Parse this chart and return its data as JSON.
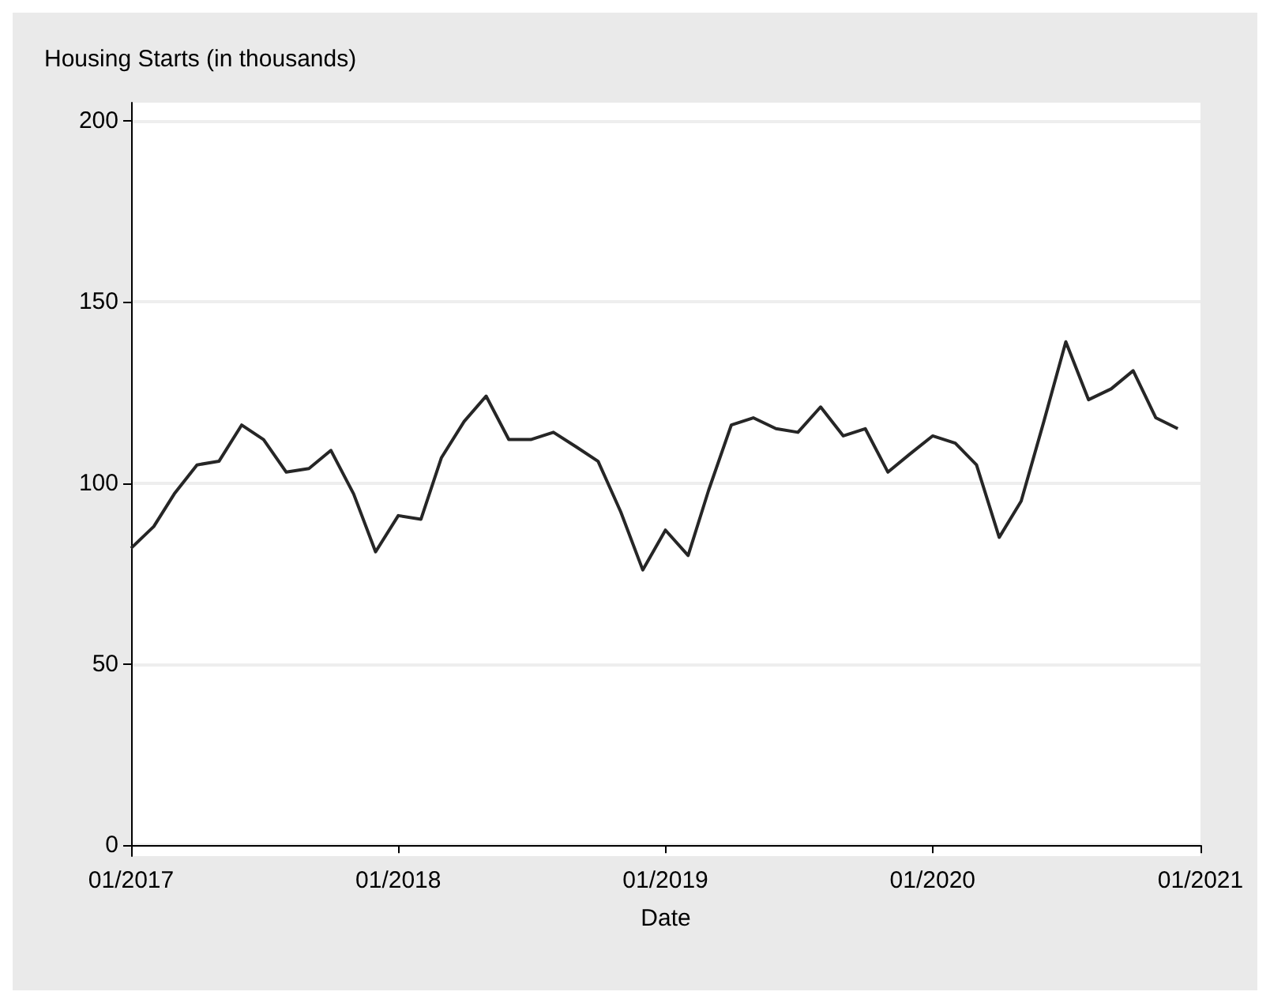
{
  "chart_data": {
    "type": "line",
    "ylabel": "Housing Starts (in thousands)",
    "xlabel": "Date",
    "x": [
      "2017-01",
      "2017-02",
      "2017-03",
      "2017-04",
      "2017-05",
      "2017-06",
      "2017-07",
      "2017-08",
      "2017-09",
      "2017-10",
      "2017-11",
      "2017-12",
      "2018-01",
      "2018-02",
      "2018-03",
      "2018-04",
      "2018-05",
      "2018-06",
      "2018-07",
      "2018-08",
      "2018-09",
      "2018-10",
      "2018-11",
      "2018-12",
      "2019-01",
      "2019-02",
      "2019-03",
      "2019-04",
      "2019-05",
      "2019-06",
      "2019-07",
      "2019-08",
      "2019-09",
      "2019-10",
      "2019-11",
      "2019-12",
      "2020-01",
      "2020-02",
      "2020-03",
      "2020-04",
      "2020-05",
      "2020-06",
      "2020-07",
      "2020-08",
      "2020-09",
      "2020-10",
      "2020-11",
      "2020-12"
    ],
    "series": [
      {
        "color": "#262626",
        "values": [
          82,
          88,
          97,
          105,
          106,
          116,
          112,
          103,
          104,
          109,
          97,
          81,
          91,
          90,
          107,
          117,
          124,
          112,
          112,
          114,
          110,
          106,
          92,
          76,
          87,
          80,
          98,
          116,
          118,
          115,
          114,
          121,
          113,
          115,
          103,
          108,
          113,
          111,
          105,
          85,
          95,
          117,
          139,
          123,
          126,
          131,
          118,
          115
        ]
      }
    ],
    "xlim": [
      "2017-01",
      "2021-01"
    ],
    "xticks": [
      {
        "value": "2017-01",
        "label": "01/2017"
      },
      {
        "value": "2018-01",
        "label": "01/2018"
      },
      {
        "value": "2019-01",
        "label": "01/2019"
      },
      {
        "value": "2020-01",
        "label": "01/2020"
      },
      {
        "value": "2021-01",
        "label": "01/2021"
      }
    ],
    "ylim": [
      -3,
      205
    ],
    "yticks": [
      0,
      50,
      100,
      150,
      200
    ],
    "grid": "y",
    "marker": "none",
    "line_style": "solid"
  }
}
